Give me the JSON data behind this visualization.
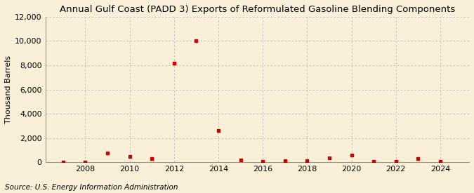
{
  "title": "Annual Gulf Coast (PADD 3) Exports of Reformulated Gasoline Blending Components",
  "ylabel": "Thousand Barrels",
  "source": "Source: U.S. Energy Information Administration",
  "background_color": "#faefd8",
  "marker_color": "#cc0000",
  "grid_color": "#bbbbbb",
  "years": [
    2007,
    2008,
    2009,
    2010,
    2011,
    2012,
    2013,
    2014,
    2015,
    2016,
    2017,
    2018,
    2019,
    2020,
    2021,
    2022,
    2023,
    2024
  ],
  "values": [
    0,
    0,
    750,
    500,
    300,
    8200,
    10000,
    2600,
    200,
    50,
    100,
    150,
    350,
    600,
    50,
    50,
    300,
    50
  ],
  "ylim": [
    0,
    12000
  ],
  "yticks": [
    0,
    2000,
    4000,
    6000,
    8000,
    10000,
    12000
  ],
  "xticks": [
    2008,
    2010,
    2012,
    2014,
    2016,
    2018,
    2020,
    2022,
    2024
  ],
  "xlim": [
    2006.2,
    2025.3
  ],
  "title_fontsize": 9.5,
  "tick_fontsize": 8,
  "label_fontsize": 8,
  "source_fontsize": 7.5
}
